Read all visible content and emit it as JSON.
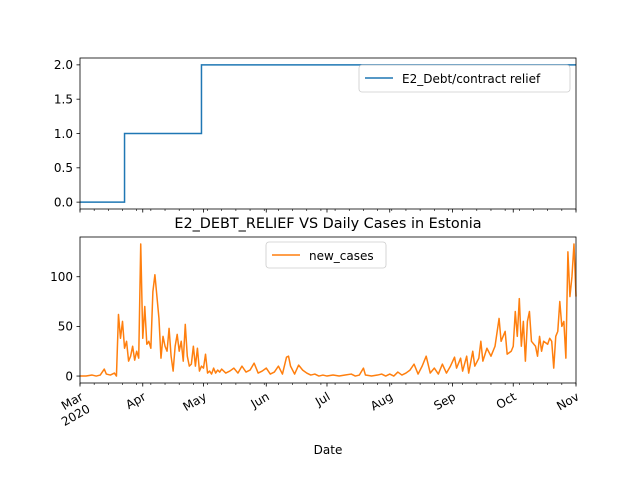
{
  "chart_data": [
    {
      "type": "line",
      "title": "",
      "xlabel": "",
      "ylabel": "",
      "x_range": [
        "2020-03-01",
        "2020-11-01"
      ],
      "ylim": [
        -0.1,
        2.1
      ],
      "yticks": [
        "0.0",
        "0.5",
        "1.0",
        "1.5",
        "2.0"
      ],
      "legend_position": "upper right",
      "series": [
        {
          "name": "E2_Debt/contract relief",
          "color": "#1f77b4",
          "points": [
            {
              "x": "2020-03-01",
              "y": 0
            },
            {
              "x": "2020-03-23",
              "y": 0
            },
            {
              "x": "2020-03-23",
              "y": 1
            },
            {
              "x": "2020-04-30",
              "y": 1
            },
            {
              "x": "2020-04-30",
              "y": 2
            },
            {
              "x": "2020-11-01",
              "y": 2
            }
          ]
        }
      ]
    },
    {
      "type": "line",
      "title": "E2_DEBT_RELIEF VS Daily Cases in Estonia",
      "xlabel": "Date",
      "ylabel": "",
      "x_range": [
        "2020-03-01",
        "2020-11-01"
      ],
      "ylim": [
        -7,
        140
      ],
      "yticks": [
        "0",
        "50",
        "100"
      ],
      "xticks": [
        {
          "date": "2020-03-01",
          "label": "Mar",
          "sublabel": "2020"
        },
        {
          "date": "2020-04-01",
          "label": "Apr"
        },
        {
          "date": "2020-05-01",
          "label": "May"
        },
        {
          "date": "2020-06-01",
          "label": "Jun"
        },
        {
          "date": "2020-07-01",
          "label": "Jul"
        },
        {
          "date": "2020-08-01",
          "label": "Aug"
        },
        {
          "date": "2020-09-01",
          "label": "Sep"
        },
        {
          "date": "2020-10-01",
          "label": "Oct"
        },
        {
          "date": "2020-11-01",
          "label": "Nov"
        }
      ],
      "legend_position": "upper center",
      "series": [
        {
          "name": "new_cases",
          "color": "#ff7f0e",
          "points": [
            [
              "2020-03-01",
              0
            ],
            [
              "2020-03-04",
              0
            ],
            [
              "2020-03-07",
              1
            ],
            [
              "2020-03-09",
              0
            ],
            [
              "2020-03-11",
              1
            ],
            [
              "2020-03-13",
              7
            ],
            [
              "2020-03-14",
              2
            ],
            [
              "2020-03-16",
              1
            ],
            [
              "2020-03-18",
              3
            ],
            [
              "2020-03-19",
              0
            ],
            [
              "2020-03-20",
              62
            ],
            [
              "2020-03-21",
              38
            ],
            [
              "2020-03-22",
              55
            ],
            [
              "2020-03-23",
              28
            ],
            [
              "2020-03-24",
              35
            ],
            [
              "2020-03-25",
              15
            ],
            [
              "2020-03-26",
              20
            ],
            [
              "2020-03-27",
              30
            ],
            [
              "2020-03-28",
              16
            ],
            [
              "2020-03-29",
              25
            ],
            [
              "2020-03-30",
              18
            ],
            [
              "2020-03-31",
              133
            ],
            [
              "2020-04-01",
              38
            ],
            [
              "2020-04-02",
              70
            ],
            [
              "2020-04-03",
              32
            ],
            [
              "2020-04-04",
              35
            ],
            [
              "2020-04-05",
              28
            ],
            [
              "2020-04-06",
              85
            ],
            [
              "2020-04-07",
              102
            ],
            [
              "2020-04-08",
              80
            ],
            [
              "2020-04-09",
              58
            ],
            [
              "2020-04-10",
              18
            ],
            [
              "2020-04-11",
              40
            ],
            [
              "2020-04-12",
              30
            ],
            [
              "2020-04-13",
              25
            ],
            [
              "2020-04-14",
              48
            ],
            [
              "2020-04-15",
              20
            ],
            [
              "2020-04-16",
              5
            ],
            [
              "2020-04-17",
              30
            ],
            [
              "2020-04-18",
              42
            ],
            [
              "2020-04-19",
              25
            ],
            [
              "2020-04-20",
              35
            ],
            [
              "2020-04-21",
              15
            ],
            [
              "2020-04-22",
              52
            ],
            [
              "2020-04-23",
              20
            ],
            [
              "2020-04-24",
              10
            ],
            [
              "2020-04-25",
              12
            ],
            [
              "2020-04-26",
              30
            ],
            [
              "2020-04-27",
              10
            ],
            [
              "2020-04-28",
              28
            ],
            [
              "2020-04-29",
              5
            ],
            [
              "2020-04-30",
              10
            ],
            [
              "2020-05-01",
              8
            ],
            [
              "2020-05-02",
              22
            ],
            [
              "2020-05-03",
              3
            ],
            [
              "2020-05-04",
              5
            ],
            [
              "2020-05-05",
              2
            ],
            [
              "2020-05-06",
              8
            ],
            [
              "2020-05-07",
              3
            ],
            [
              "2020-05-08",
              6
            ],
            [
              "2020-05-09",
              4
            ],
            [
              "2020-05-10",
              7
            ],
            [
              "2020-05-12",
              3
            ],
            [
              "2020-05-14",
              5
            ],
            [
              "2020-05-16",
              8
            ],
            [
              "2020-05-18",
              3
            ],
            [
              "2020-05-20",
              10
            ],
            [
              "2020-05-22",
              4
            ],
            [
              "2020-05-24",
              6
            ],
            [
              "2020-05-26",
              13
            ],
            [
              "2020-05-28",
              3
            ],
            [
              "2020-05-30",
              5
            ],
            [
              "2020-06-01",
              8
            ],
            [
              "2020-06-03",
              2
            ],
            [
              "2020-06-05",
              4
            ],
            [
              "2020-06-07",
              10
            ],
            [
              "2020-06-09",
              2
            ],
            [
              "2020-06-11",
              19
            ],
            [
              "2020-06-12",
              20
            ],
            [
              "2020-06-13",
              10
            ],
            [
              "2020-06-15",
              2
            ],
            [
              "2020-06-17",
              11
            ],
            [
              "2020-06-19",
              6
            ],
            [
              "2020-06-21",
              3
            ],
            [
              "2020-06-23",
              1
            ],
            [
              "2020-06-25",
              2
            ],
            [
              "2020-06-27",
              0
            ],
            [
              "2020-06-29",
              1
            ],
            [
              "2020-07-01",
              0
            ],
            [
              "2020-07-04",
              1
            ],
            [
              "2020-07-07",
              0
            ],
            [
              "2020-07-10",
              1
            ],
            [
              "2020-07-13",
              2
            ],
            [
              "2020-07-15",
              0
            ],
            [
              "2020-07-17",
              1
            ],
            [
              "2020-07-19",
              8
            ],
            [
              "2020-07-20",
              1
            ],
            [
              "2020-07-23",
              0
            ],
            [
              "2020-07-26",
              1
            ],
            [
              "2020-07-28",
              2
            ],
            [
              "2020-07-30",
              0
            ],
            [
              "2020-08-01",
              2
            ],
            [
              "2020-08-03",
              0
            ],
            [
              "2020-08-05",
              4
            ],
            [
              "2020-08-07",
              1
            ],
            [
              "2020-08-09",
              3
            ],
            [
              "2020-08-11",
              6
            ],
            [
              "2020-08-13",
              12
            ],
            [
              "2020-08-15",
              2
            ],
            [
              "2020-08-17",
              10
            ],
            [
              "2020-08-19",
              20
            ],
            [
              "2020-08-21",
              3
            ],
            [
              "2020-08-23",
              8
            ],
            [
              "2020-08-25",
              2
            ],
            [
              "2020-08-27",
              12
            ],
            [
              "2020-08-29",
              3
            ],
            [
              "2020-08-31",
              10
            ],
            [
              "2020-09-02",
              19
            ],
            [
              "2020-09-03",
              8
            ],
            [
              "2020-09-05",
              18
            ],
            [
              "2020-09-06",
              5
            ],
            [
              "2020-09-08",
              20
            ],
            [
              "2020-09-09",
              3
            ],
            [
              "2020-09-11",
              25
            ],
            [
              "2020-09-12",
              10
            ],
            [
              "2020-09-14",
              18
            ],
            [
              "2020-09-15",
              35
            ],
            [
              "2020-09-16",
              15
            ],
            [
              "2020-09-18",
              28
            ],
            [
              "2020-09-20",
              20
            ],
            [
              "2020-09-22",
              30
            ],
            [
              "2020-09-24",
              58
            ],
            [
              "2020-09-25",
              35
            ],
            [
              "2020-09-27",
              45
            ],
            [
              "2020-09-28",
              22
            ],
            [
              "2020-09-30",
              25
            ],
            [
              "2020-10-01",
              30
            ],
            [
              "2020-10-02",
              65
            ],
            [
              "2020-10-03",
              40
            ],
            [
              "2020-10-04",
              78
            ],
            [
              "2020-10-05",
              30
            ],
            [
              "2020-10-06",
              55
            ],
            [
              "2020-10-07",
              15
            ],
            [
              "2020-10-08",
              55
            ],
            [
              "2020-10-09",
              65
            ],
            [
              "2020-10-10",
              35
            ],
            [
              "2020-10-12",
              30
            ],
            [
              "2020-10-13",
              20
            ],
            [
              "2020-10-14",
              40
            ],
            [
              "2020-10-15",
              25
            ],
            [
              "2020-10-16",
              35
            ],
            [
              "2020-10-18",
              32
            ],
            [
              "2020-10-19",
              38
            ],
            [
              "2020-10-20",
              35
            ],
            [
              "2020-10-21",
              8
            ],
            [
              "2020-10-22",
              40
            ],
            [
              "2020-10-23",
              45
            ],
            [
              "2020-10-24",
              75
            ],
            [
              "2020-10-25",
              50
            ],
            [
              "2020-10-26",
              55
            ],
            [
              "2020-10-27",
              18
            ],
            [
              "2020-10-28",
              125
            ],
            [
              "2020-10-29",
              80
            ],
            [
              "2020-10-30",
              100
            ],
            [
              "2020-10-31",
              133
            ],
            [
              "2020-11-01",
              80
            ]
          ]
        }
      ]
    }
  ]
}
